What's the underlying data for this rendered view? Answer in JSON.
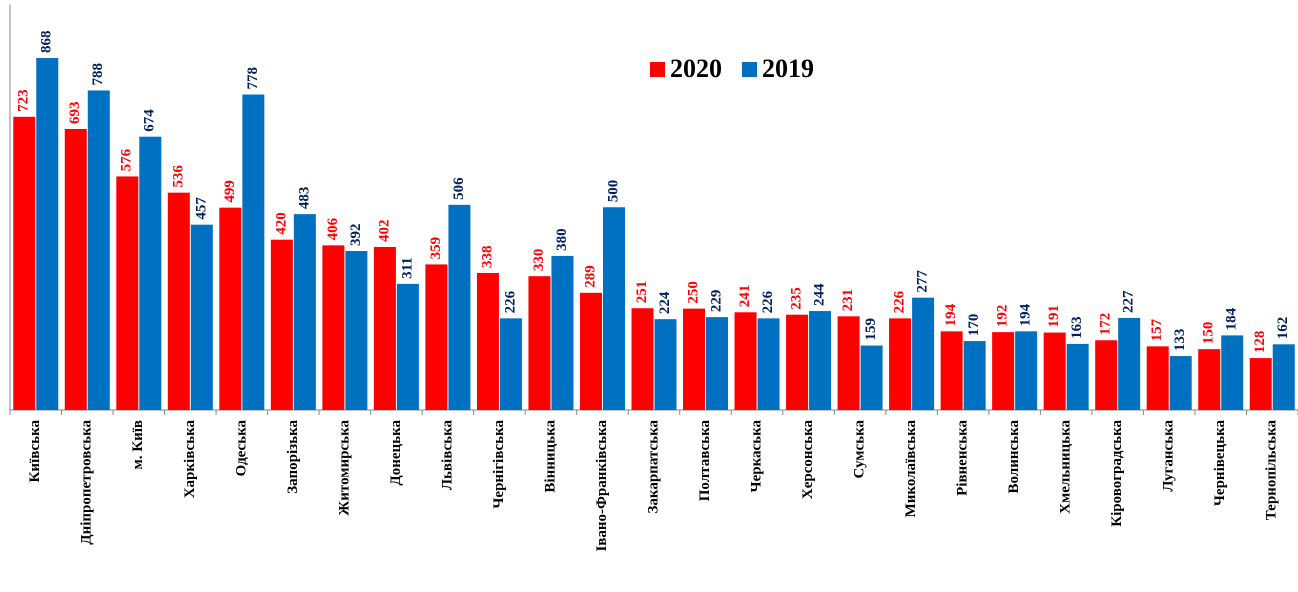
{
  "chart_data": {
    "type": "bar",
    "categories": [
      "Київська",
      "Дніпропетровська",
      "м. Київ",
      "Харківська",
      "Одеська",
      "Запорізька",
      "Житомирська",
      "Донецька",
      "Львівська",
      "Чернігівська",
      "Вінницька",
      "Івано-Франківська",
      "Закарпатська",
      "Полтавська",
      "Черкаська",
      "Херсонська",
      "Сумська",
      "Миколаївська",
      "Рівненська",
      "Волинська",
      "Хмельницька",
      "Кіровоградська",
      "Луганська",
      "Чернівецька",
      "Тернопільська"
    ],
    "series": [
      {
        "name": "2020",
        "color": "#ff0000",
        "label_color": "#ff0000",
        "values": [
          723,
          693,
          576,
          536,
          499,
          420,
          406,
          402,
          359,
          338,
          330,
          289,
          251,
          250,
          241,
          235,
          231,
          226,
          194,
          192,
          191,
          172,
          157,
          150,
          128
        ]
      },
      {
        "name": "2019",
        "color": "#0070c0",
        "label_color": "#002060",
        "values": [
          868,
          788,
          674,
          457,
          778,
          483,
          392,
          311,
          506,
          226,
          380,
          500,
          224,
          229,
          226,
          244,
          159,
          277,
          170,
          194,
          163,
          227,
          133,
          184,
          162
        ]
      }
    ],
    "ylim": [
      0,
      1000
    ],
    "legend": "top"
  }
}
